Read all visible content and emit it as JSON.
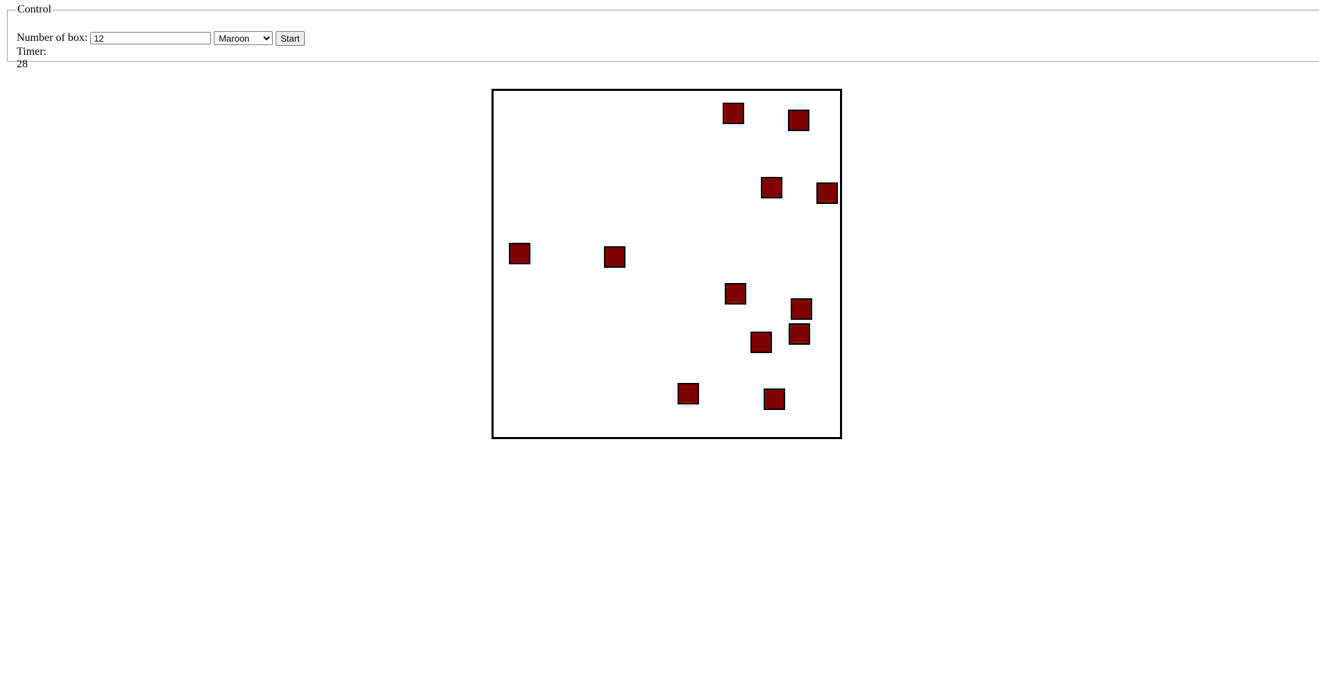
{
  "control": {
    "legend": "Control",
    "number_label": "Number of box:",
    "number_value": "12",
    "color_options": [
      "Maroon"
    ],
    "color_selected": "Maroon",
    "start_label": "Start",
    "timer_label": "Timer:",
    "timer_value": "28"
  },
  "game": {
    "box_color": "#800000",
    "box_count": 12
  }
}
